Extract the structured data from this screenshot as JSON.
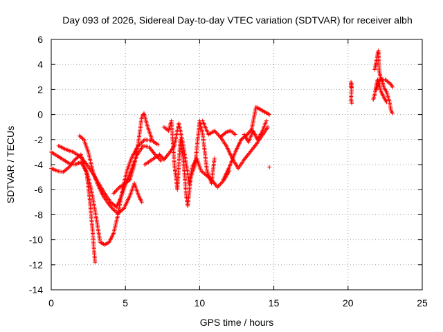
{
  "chart_data": {
    "type": "scatter",
    "title": "Day 093 of 2026, Sidereal Day-to-day VTEC variation (SDTVAR) for receiver albh",
    "xlabel": "GPS time / hours",
    "ylabel": "SDTVAR / TECUs",
    "xlim": [
      0,
      25
    ],
    "ylim": [
      -14,
      6
    ],
    "xticks": [
      0,
      5,
      10,
      15,
      20,
      25
    ],
    "yticks": [
      -14,
      -12,
      -10,
      -8,
      -6,
      -4,
      -2,
      0,
      2,
      4,
      6
    ],
    "grid": true,
    "marker": "+",
    "color": "#ff0000",
    "series": [
      {
        "name": "s1",
        "points": [
          [
            0.0,
            -3.0
          ],
          [
            0.4,
            -3.3
          ],
          [
            0.8,
            -3.6
          ],
          [
            1.2,
            -3.9
          ],
          [
            1.6,
            -4.0
          ],
          [
            2.0,
            -3.8
          ],
          [
            2.4,
            -4.6
          ],
          [
            2.7,
            -6.0
          ],
          [
            3.0,
            -8.0
          ],
          [
            3.3,
            -10.2
          ],
          [
            3.6,
            -10.4
          ],
          [
            3.9,
            -10.2
          ],
          [
            4.2,
            -9.5
          ],
          [
            4.5,
            -8.0
          ],
          [
            4.8,
            -6.0
          ],
          [
            5.1,
            -4.5
          ],
          [
            5.4,
            -3.5
          ],
          [
            5.8,
            -2.6
          ],
          [
            6.3,
            -2.0
          ],
          [
            6.8,
            -2.1
          ],
          [
            7.2,
            -2.4
          ]
        ]
      },
      {
        "name": "s2",
        "points": [
          [
            0.0,
            -4.3
          ],
          [
            0.4,
            -4.5
          ],
          [
            0.8,
            -4.6
          ],
          [
            1.2,
            -4.2
          ],
          [
            1.6,
            -3.6
          ],
          [
            2.0,
            -3.2
          ],
          [
            2.4,
            -4.8
          ],
          [
            2.6,
            -6.8
          ],
          [
            2.8,
            -9.5
          ],
          [
            2.95,
            -11.8
          ]
        ]
      },
      {
        "name": "s3",
        "points": [
          [
            0.5,
            -2.5
          ],
          [
            1.0,
            -2.8
          ],
          [
            1.5,
            -3.0
          ],
          [
            2.0,
            -3.4
          ],
          [
            2.4,
            -4.0
          ],
          [
            2.8,
            -4.7
          ],
          [
            3.2,
            -5.5
          ],
          [
            3.6,
            -6.3
          ],
          [
            4.0,
            -7.0
          ],
          [
            4.4,
            -7.4
          ],
          [
            4.7,
            -6.6
          ],
          [
            5.0,
            -5.6
          ],
          [
            5.4,
            -4.4
          ],
          [
            5.8,
            -3.2
          ],
          [
            6.2,
            -2.5
          ],
          [
            6.6,
            -2.6
          ],
          [
            7.0,
            -3.2
          ],
          [
            7.4,
            -3.7
          ]
        ]
      },
      {
        "name": "s4",
        "points": [
          [
            1.9,
            -1.7
          ],
          [
            2.2,
            -2.0
          ],
          [
            2.5,
            -3.0
          ],
          [
            2.8,
            -4.5
          ],
          [
            3.1,
            -5.5
          ],
          [
            3.5,
            -6.5
          ],
          [
            3.9,
            -7.2
          ],
          [
            4.2,
            -7.6
          ],
          [
            4.5,
            -7.9
          ],
          [
            4.9,
            -7.5
          ],
          [
            5.3,
            -6.5
          ],
          [
            5.6,
            -5.5
          ],
          [
            5.9,
            -6.5
          ],
          [
            6.1,
            -7.0
          ]
        ]
      },
      {
        "name": "s5",
        "points": [
          [
            4.2,
            -6.3
          ],
          [
            4.6,
            -5.8
          ],
          [
            5.0,
            -5.5
          ],
          [
            5.3,
            -5.2
          ],
          [
            5.6,
            -4.0
          ],
          [
            5.9,
            -2.0
          ],
          [
            6.1,
            -0.2
          ],
          [
            6.25,
            0.1
          ],
          [
            6.5,
            -1.0
          ],
          [
            6.8,
            -2.0
          ]
        ]
      },
      {
        "name": "s6",
        "points": [
          [
            6.3,
            -4.0
          ],
          [
            6.8,
            -3.6
          ],
          [
            7.3,
            -3.2
          ],
          [
            7.6,
            -3.6
          ],
          [
            8.0,
            -3.0
          ],
          [
            8.3,
            -2.5
          ],
          [
            8.6,
            -0.7
          ],
          [
            8.9,
            -2.5
          ],
          [
            9.1,
            -4.0
          ],
          [
            9.3,
            -5.5
          ],
          [
            9.5,
            -4.2
          ],
          [
            9.8,
            -3.5
          ],
          [
            10.1,
            -4.5
          ],
          [
            10.4,
            -4.8
          ],
          [
            10.8,
            -5.2
          ],
          [
            11.2,
            -5.8
          ],
          [
            11.6,
            -5.3
          ],
          [
            12.0,
            -4.5
          ]
        ]
      },
      {
        "name": "s7",
        "points": [
          [
            7.6,
            -1.0
          ],
          [
            7.9,
            -1.3
          ],
          [
            8.1,
            -0.5
          ],
          [
            8.3,
            -4.0
          ],
          [
            8.5,
            -6.0
          ],
          [
            8.7,
            -2.0
          ],
          [
            8.9,
            -3.5
          ],
          [
            9.1,
            -6.5
          ],
          [
            9.2,
            -7.3
          ],
          [
            9.4,
            -5.0
          ],
          [
            9.7,
            -4.0
          ],
          [
            10.0,
            -0.5
          ],
          [
            10.2,
            -1.5
          ],
          [
            10.5,
            -4.5
          ],
          [
            10.8,
            -5.5
          ],
          [
            11.0,
            -3.5
          ]
        ]
      },
      {
        "name": "s8",
        "points": [
          [
            10.2,
            -0.5
          ],
          [
            10.6,
            -1.6
          ],
          [
            11.0,
            -1.3
          ],
          [
            11.4,
            -1.8
          ],
          [
            11.8,
            -1.4
          ],
          [
            12.1,
            -1.3
          ],
          [
            12.4,
            -1.6
          ]
        ]
      },
      {
        "name": "s9",
        "points": [
          [
            11.4,
            -1.8
          ],
          [
            11.8,
            -2.5
          ],
          [
            12.2,
            -3.5
          ],
          [
            12.6,
            -4.3
          ],
          [
            13.0,
            -3.6
          ],
          [
            13.4,
            -3.0
          ],
          [
            13.8,
            -2.4
          ],
          [
            14.2,
            -1.7
          ],
          [
            14.6,
            -1.0
          ]
        ]
      },
      {
        "name": "s10",
        "points": [
          [
            11.6,
            -5.2
          ],
          [
            12.0,
            -4.2
          ],
          [
            12.4,
            -3.0
          ],
          [
            12.8,
            -2.0
          ],
          [
            13.2,
            -1.6
          ],
          [
            13.5,
            -1.2
          ],
          [
            13.8,
            0.6
          ],
          [
            14.1,
            0.4
          ],
          [
            14.4,
            0.2
          ],
          [
            14.7,
            0.0
          ]
        ]
      },
      {
        "name": "s11",
        "points": [
          [
            13.0,
            -1.6
          ],
          [
            13.3,
            -2.2
          ],
          [
            13.6,
            -1.3
          ],
          [
            13.9,
            -2.0
          ],
          [
            14.2,
            -1.4
          ],
          [
            14.5,
            -0.5
          ]
        ]
      },
      {
        "name": "s12",
        "points": [
          [
            14.7,
            -4.2
          ]
        ]
      },
      {
        "name": "s13",
        "points": [
          [
            20.2,
            2.2
          ],
          [
            20.2,
            2.6
          ],
          [
            20.25,
            2.4
          ],
          [
            20.2,
            1.2
          ],
          [
            20.25,
            0.9
          ]
        ]
      },
      {
        "name": "s14",
        "points": [
          [
            21.8,
            3.6
          ],
          [
            21.9,
            4.2
          ],
          [
            22.0,
            4.9
          ],
          [
            22.05,
            5.1
          ],
          [
            22.1,
            3.5
          ],
          [
            22.2,
            2.9
          ],
          [
            22.3,
            2.7
          ],
          [
            22.4,
            2.2
          ],
          [
            22.6,
            1.8
          ],
          [
            22.8,
            1.0
          ],
          [
            22.9,
            0.3
          ],
          [
            23.0,
            0.1
          ]
        ]
      },
      {
        "name": "s15",
        "points": [
          [
            21.9,
            2.0
          ],
          [
            22.1,
            2.7
          ],
          [
            22.3,
            2.8
          ],
          [
            22.5,
            2.8
          ],
          [
            22.7,
            2.6
          ],
          [
            22.9,
            2.4
          ],
          [
            23.0,
            2.2
          ]
        ]
      },
      {
        "name": "s16",
        "points": [
          [
            21.7,
            1.2
          ],
          [
            21.8,
            1.6
          ],
          [
            21.9,
            2.3
          ],
          [
            22.0,
            2.8
          ],
          [
            22.2,
            1.9
          ],
          [
            22.4,
            1.4
          ],
          [
            22.6,
            1.0
          ]
        ]
      }
    ]
  }
}
